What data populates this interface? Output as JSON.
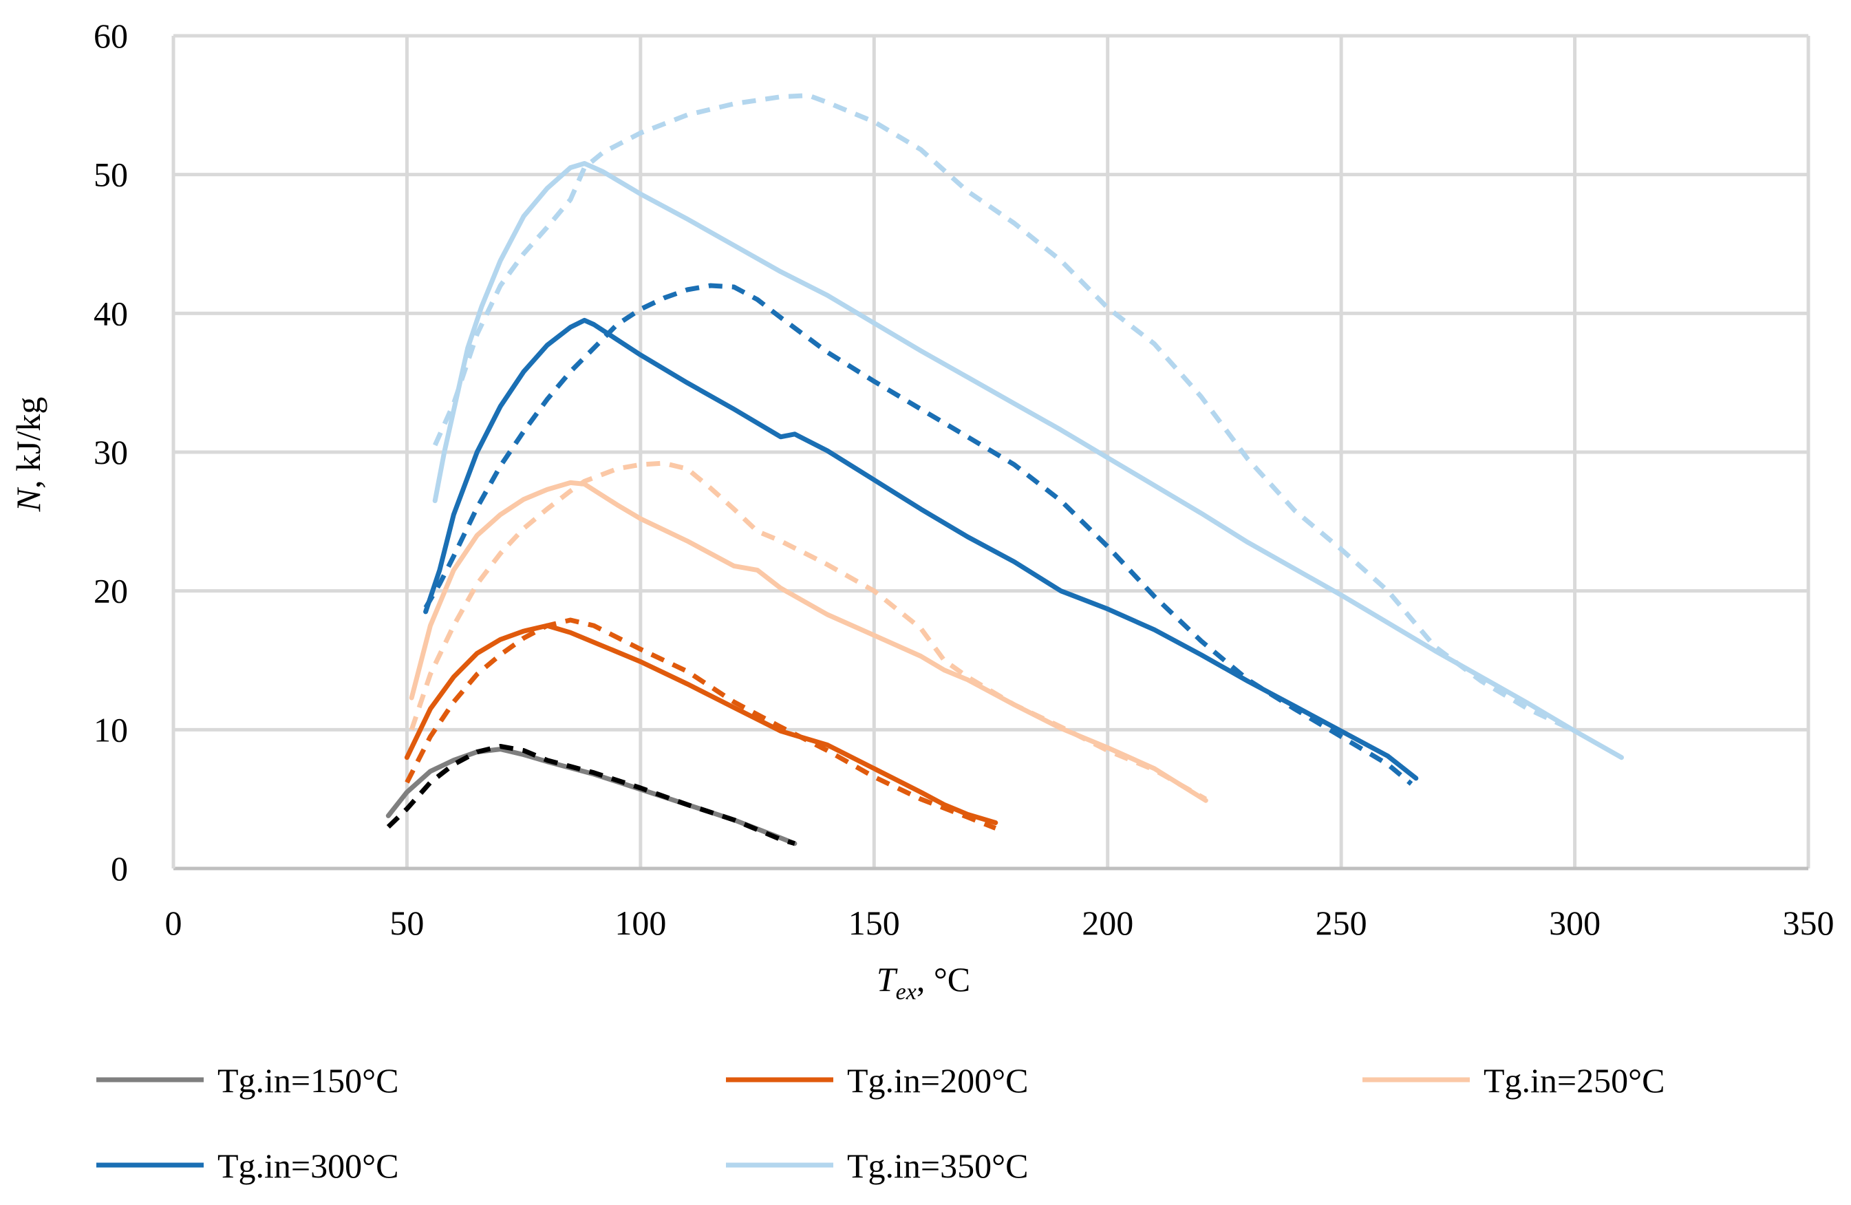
{
  "chart_data": {
    "type": "line",
    "title": "",
    "xlabel": {
      "main": "T",
      "sub": "ex",
      "rest": ", °C"
    },
    "ylabel": {
      "main": "N",
      "rest": ", kJ/kg"
    },
    "xlim": [
      0,
      350
    ],
    "ylim": [
      0,
      60
    ],
    "xticks": [
      "0",
      "50",
      "100",
      "150",
      "200",
      "250",
      "300",
      "350"
    ],
    "yticks": [
      "0",
      "10",
      "20",
      "30",
      "40",
      "50",
      "60"
    ],
    "grid": true,
    "legend_position": "bottom",
    "series": [
      {
        "name": "Tg.in=150°C",
        "color": "#7f7f7f",
        "legend": true,
        "points": [
          [
            46,
            3.8
          ],
          [
            50,
            5.5
          ],
          [
            55,
            7.0
          ],
          [
            60,
            7.8
          ],
          [
            65,
            8.4
          ],
          [
            70,
            8.6
          ],
          [
            75,
            8.2
          ],
          [
            80,
            7.7
          ],
          [
            90,
            6.8
          ],
          [
            100,
            5.7
          ],
          [
            110,
            4.6
          ],
          [
            120,
            3.5
          ],
          [
            130,
            2.2
          ],
          [
            133,
            1.8
          ]
        ]
      },
      {
        "name": "Tg.in=150°C dashed",
        "color": "#000000",
        "dashed": true,
        "legend": false,
        "points": [
          [
            46,
            3.0
          ],
          [
            50,
            4.3
          ],
          [
            55,
            6.2
          ],
          [
            60,
            7.5
          ],
          [
            65,
            8.4
          ],
          [
            70,
            8.8
          ],
          [
            75,
            8.5
          ],
          [
            80,
            7.8
          ],
          [
            90,
            6.9
          ],
          [
            100,
            5.8
          ],
          [
            110,
            4.6
          ],
          [
            120,
            3.5
          ],
          [
            130,
            2.1
          ],
          [
            133,
            1.8
          ]
        ]
      },
      {
        "name": "Tg.in=200°C",
        "color": "#e05a0c",
        "legend": true,
        "points": [
          [
            50,
            8.0
          ],
          [
            55,
            11.5
          ],
          [
            60,
            13.8
          ],
          [
            65,
            15.5
          ],
          [
            70,
            16.5
          ],
          [
            75,
            17.1
          ],
          [
            80,
            17.5
          ],
          [
            85,
            17.0
          ],
          [
            90,
            16.3
          ],
          [
            100,
            14.9
          ],
          [
            110,
            13.3
          ],
          [
            120,
            11.6
          ],
          [
            130,
            9.9
          ],
          [
            140,
            8.9
          ],
          [
            150,
            7.2
          ],
          [
            160,
            5.5
          ],
          [
            165,
            4.6
          ],
          [
            170,
            3.9
          ],
          [
            176,
            3.3
          ]
        ]
      },
      {
        "name": "Tg.in=200°C dashed",
        "color": "#e05a0c",
        "dashed": true,
        "legend": false,
        "points": [
          [
            50,
            6.2
          ],
          [
            55,
            9.5
          ],
          [
            60,
            12.0
          ],
          [
            65,
            14.0
          ],
          [
            70,
            15.4
          ],
          [
            75,
            16.6
          ],
          [
            80,
            17.5
          ],
          [
            85,
            17.9
          ],
          [
            90,
            17.5
          ],
          [
            100,
            15.8
          ],
          [
            110,
            14.2
          ],
          [
            120,
            12.0
          ],
          [
            130,
            10.2
          ],
          [
            140,
            8.5
          ],
          [
            150,
            6.6
          ],
          [
            160,
            5.0
          ],
          [
            170,
            3.7
          ],
          [
            176,
            2.9
          ]
        ]
      },
      {
        "name": "Tg.in=250°C",
        "color": "#fbc8a6",
        "legend": true,
        "points": [
          [
            51,
            12.3
          ],
          [
            55,
            17.5
          ],
          [
            60,
            21.5
          ],
          [
            65,
            24.0
          ],
          [
            70,
            25.5
          ],
          [
            75,
            26.6
          ],
          [
            80,
            27.3
          ],
          [
            85,
            27.8
          ],
          [
            88,
            27.7
          ],
          [
            95,
            26.2
          ],
          [
            100,
            25.2
          ],
          [
            110,
            23.6
          ],
          [
            120,
            21.8
          ],
          [
            125,
            21.5
          ],
          [
            130,
            20.2
          ],
          [
            140,
            18.3
          ],
          [
            150,
            16.8
          ],
          [
            160,
            15.3
          ],
          [
            165,
            14.3
          ],
          [
            170,
            13.6
          ],
          [
            180,
            11.8
          ],
          [
            190,
            10.1
          ],
          [
            200,
            8.7
          ],
          [
            210,
            7.2
          ],
          [
            221,
            4.9
          ]
        ]
      },
      {
        "name": "Tg.in=250°C dashed",
        "color": "#fbc8a6",
        "dashed": true,
        "legend": false,
        "points": [
          [
            51,
            10.0
          ],
          [
            55,
            14.0
          ],
          [
            60,
            17.5
          ],
          [
            65,
            20.5
          ],
          [
            70,
            22.7
          ],
          [
            75,
            24.5
          ],
          [
            80,
            25.9
          ],
          [
            85,
            27.2
          ],
          [
            88,
            27.9
          ],
          [
            95,
            28.8
          ],
          [
            100,
            29.1
          ],
          [
            105,
            29.2
          ],
          [
            110,
            28.8
          ],
          [
            115,
            27.4
          ],
          [
            120,
            25.9
          ],
          [
            125,
            24.3
          ],
          [
            130,
            23.6
          ],
          [
            140,
            21.9
          ],
          [
            150,
            20.0
          ],
          [
            160,
            17.3
          ],
          [
            165,
            15.0
          ],
          [
            170,
            13.8
          ],
          [
            180,
            11.8
          ],
          [
            190,
            10.2
          ],
          [
            200,
            8.5
          ],
          [
            210,
            7.1
          ],
          [
            221,
            5.0
          ]
        ]
      },
      {
        "name": "Tg.in=300°C",
        "color": "#1a6fb4",
        "legend": true,
        "points": [
          [
            54,
            18.5
          ],
          [
            57,
            21.5
          ],
          [
            60,
            25.5
          ],
          [
            65,
            30.0
          ],
          [
            70,
            33.3
          ],
          [
            75,
            35.8
          ],
          [
            80,
            37.7
          ],
          [
            85,
            39.0
          ],
          [
            88,
            39.5
          ],
          [
            90,
            39.2
          ],
          [
            100,
            37.0
          ],
          [
            110,
            35.0
          ],
          [
            120,
            33.1
          ],
          [
            130,
            31.1
          ],
          [
            133,
            31.3
          ],
          [
            140,
            30.1
          ],
          [
            150,
            28.0
          ],
          [
            160,
            25.9
          ],
          [
            170,
            23.9
          ],
          [
            180,
            22.1
          ],
          [
            190,
            20.0
          ],
          [
            200,
            18.7
          ],
          [
            210,
            17.2
          ],
          [
            220,
            15.4
          ],
          [
            230,
            13.5
          ],
          [
            240,
            11.7
          ],
          [
            250,
            9.9
          ],
          [
            260,
            8.1
          ],
          [
            266,
            6.5
          ]
        ]
      },
      {
        "name": "Tg.in=300°C dashed",
        "color": "#1a6fb4",
        "dashed": true,
        "legend": false,
        "points": [
          [
            54,
            18.8
          ],
          [
            57,
            20.5
          ],
          [
            60,
            22.5
          ],
          [
            65,
            26.0
          ],
          [
            70,
            29.0
          ],
          [
            75,
            31.5
          ],
          [
            80,
            33.8
          ],
          [
            85,
            35.8
          ],
          [
            90,
            37.5
          ],
          [
            95,
            39.2
          ],
          [
            100,
            40.3
          ],
          [
            105,
            41.1
          ],
          [
            110,
            41.7
          ],
          [
            115,
            42.0
          ],
          [
            120,
            41.9
          ],
          [
            125,
            41.0
          ],
          [
            130,
            39.7
          ],
          [
            140,
            37.2
          ],
          [
            150,
            35.1
          ],
          [
            160,
            33.1
          ],
          [
            170,
            31.1
          ],
          [
            180,
            29.1
          ],
          [
            190,
            26.5
          ],
          [
            200,
            23.2
          ],
          [
            210,
            19.6
          ],
          [
            220,
            16.4
          ],
          [
            230,
            13.6
          ],
          [
            240,
            11.5
          ],
          [
            250,
            9.5
          ],
          [
            260,
            7.5
          ],
          [
            265,
            6.1
          ]
        ]
      },
      {
        "name": "Tg.in=350°C",
        "color": "#b3d6ee",
        "legend": true,
        "points": [
          [
            56,
            26.5
          ],
          [
            58,
            30.0
          ],
          [
            60,
            33.0
          ],
          [
            63,
            37.5
          ],
          [
            66,
            40.5
          ],
          [
            70,
            43.8
          ],
          [
            75,
            47.0
          ],
          [
            80,
            49.0
          ],
          [
            85,
            50.5
          ],
          [
            88,
            50.8
          ],
          [
            92,
            50.2
          ],
          [
            100,
            48.6
          ],
          [
            110,
            46.8
          ],
          [
            120,
            44.9
          ],
          [
            130,
            43.0
          ],
          [
            140,
            41.3
          ],
          [
            150,
            39.3
          ],
          [
            160,
            37.3
          ],
          [
            170,
            35.4
          ],
          [
            180,
            33.5
          ],
          [
            190,
            31.6
          ],
          [
            200,
            29.6
          ],
          [
            210,
            27.6
          ],
          [
            220,
            25.6
          ],
          [
            230,
            23.5
          ],
          [
            240,
            21.6
          ],
          [
            250,
            19.7
          ],
          [
            260,
            17.7
          ],
          [
            270,
            15.7
          ],
          [
            280,
            13.8
          ],
          [
            290,
            11.9
          ],
          [
            300,
            9.9
          ],
          [
            310,
            8.0
          ]
        ]
      },
      {
        "name": "Tg.in=350°C dashed",
        "color": "#b3d6ee",
        "dashed": true,
        "legend": false,
        "points": [
          [
            56,
            30.5
          ],
          [
            60,
            33.5
          ],
          [
            65,
            38.5
          ],
          [
            70,
            42.0
          ],
          [
            75,
            44.3
          ],
          [
            80,
            46.2
          ],
          [
            85,
            48.2
          ],
          [
            88,
            50.5
          ],
          [
            92,
            51.6
          ],
          [
            100,
            53.0
          ],
          [
            110,
            54.3
          ],
          [
            120,
            55.1
          ],
          [
            130,
            55.6
          ],
          [
            136,
            55.7
          ],
          [
            140,
            55.2
          ],
          [
            150,
            53.8
          ],
          [
            160,
            51.8
          ],
          [
            170,
            48.8
          ],
          [
            180,
            46.5
          ],
          [
            190,
            43.8
          ],
          [
            200,
            40.4
          ],
          [
            210,
            37.8
          ],
          [
            220,
            34.0
          ],
          [
            230,
            29.5
          ],
          [
            240,
            25.8
          ],
          [
            250,
            23.0
          ],
          [
            260,
            20.0
          ],
          [
            270,
            16.0
          ],
          [
            280,
            13.5
          ],
          [
            290,
            11.5
          ],
          [
            300,
            9.9
          ]
        ]
      }
    ]
  }
}
